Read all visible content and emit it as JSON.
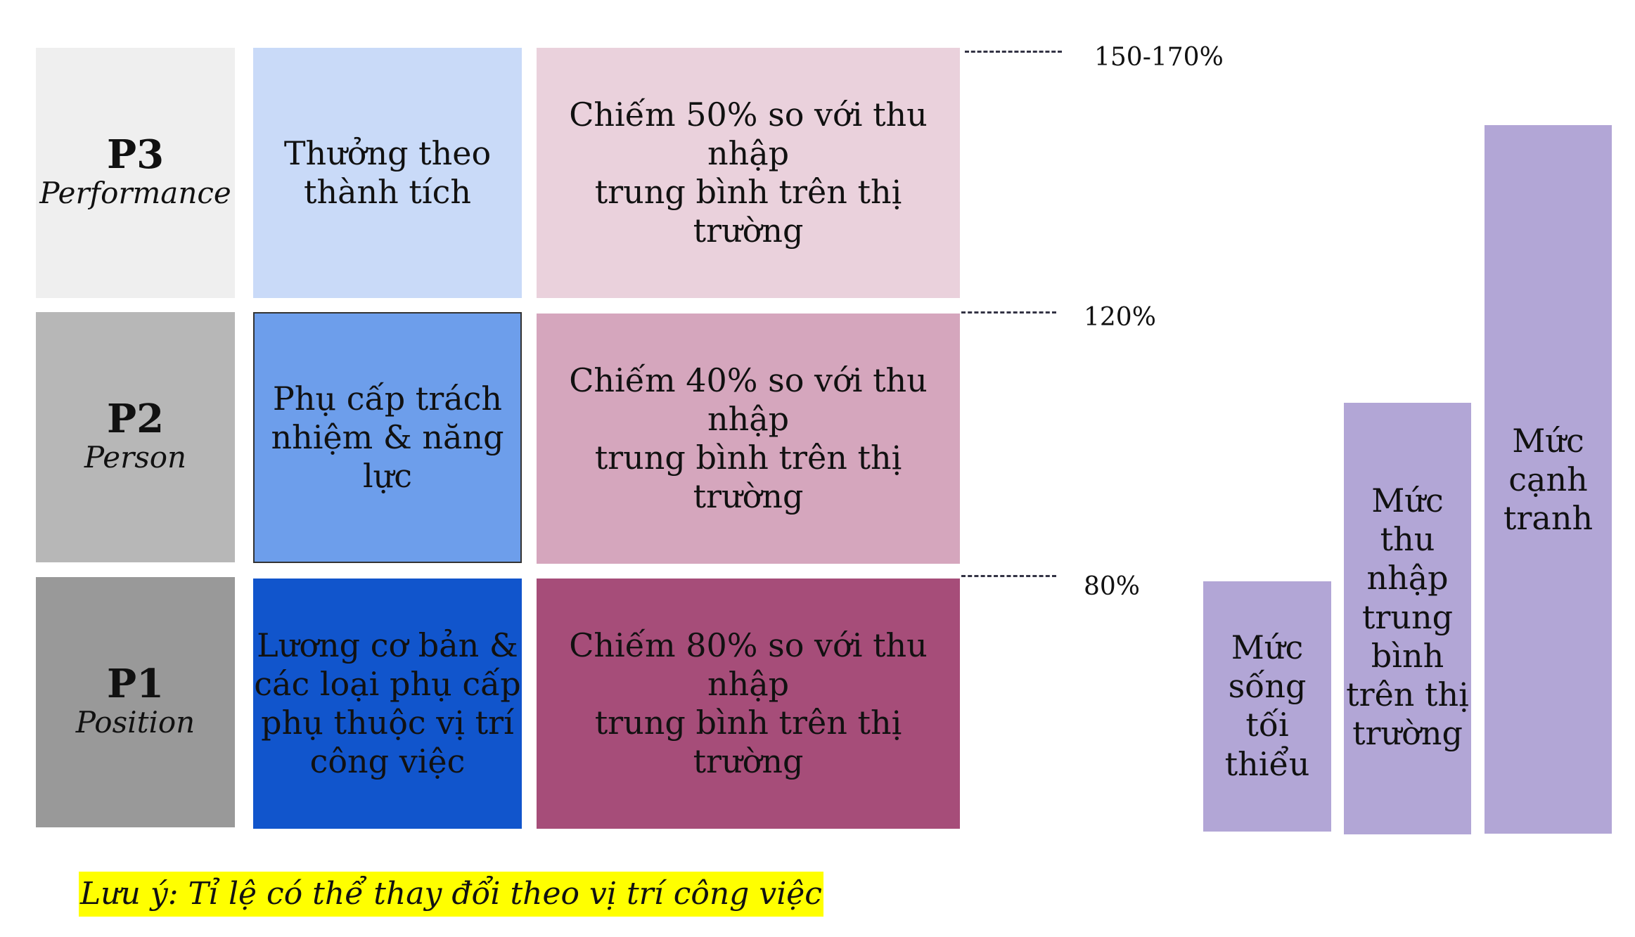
{
  "rows": [
    {
      "code": "P3",
      "name": "Performance",
      "description": "Thưởng theo\nthành tích",
      "share": "Chiếm 50% so với thu nhập\ntrung bình trên thị trường",
      "level": "150-170%",
      "colors": {
        "label_bg": "#efefef",
        "desc_bg": "#c9daf8",
        "share_bg": "#ead1dc"
      }
    },
    {
      "code": "P2",
      "name": "Person",
      "description": "Phụ cấp trách\nnhiệm & năng\nlực",
      "share": "Chiếm 40% so với thu nhập\ntrung bình trên thị trường",
      "level": "120%",
      "colors": {
        "label_bg": "#b7b7b7",
        "desc_bg": "#6d9eeb",
        "share_bg": "#d5a6bd"
      }
    },
    {
      "code": "P1",
      "name": "Position",
      "description": "Lương cơ bản &\ncác loại phụ cấp\nphụ thuộc vị trí\ncông việc",
      "share": "Chiếm 80% so với thu nhập\ntrung bình trên thị trường",
      "level": "80%",
      "colors": {
        "label_bg": "#999999",
        "desc_bg": "#1155cc",
        "share_bg": "#a64d79"
      }
    }
  ],
  "bars": [
    {
      "label": "Mức\nsống\ntối\nthiểu"
    },
    {
      "label": "Mức\nthu\nnhập\ntrung\nbình\ntrên thị\ntrường"
    },
    {
      "label": "Mức\ncạnh\ntranh"
    }
  ],
  "bar_color": "#b4a7d6",
  "note": "Lưu ý: Tỉ lệ có thể thay đổi theo vị trí công việc",
  "note_highlight": "#ffff00"
}
